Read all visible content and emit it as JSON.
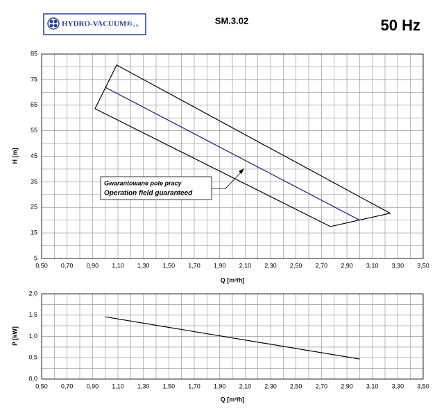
{
  "header": {
    "logo": "HYDRO-VACUUM®",
    "logo_suffix": "S.A.",
    "model": "SM.3.02",
    "frequency": "50 Hz"
  },
  "chart_data": [
    {
      "type": "line",
      "xlabel": "Q [m³/h]",
      "ylabel": "H [m]",
      "annotations": [
        "Gwarantowane pole pracy",
        "Operation field guaranteed"
      ],
      "xlim": [
        0.5,
        3.5
      ],
      "xticks": [
        {
          "value": 0.5,
          "label": "0,50"
        },
        {
          "value": 0.7,
          "label": "0,70"
        },
        {
          "value": 0.9,
          "label": "0,90"
        },
        {
          "value": 1.1,
          "label": "1,10"
        },
        {
          "value": 1.3,
          "label": "1,30"
        },
        {
          "value": 1.5,
          "label": "1,50"
        },
        {
          "value": 1.7,
          "label": "1,70"
        },
        {
          "value": 1.9,
          "label": "1,90"
        },
        {
          "value": 2.1,
          "label": "2,10"
        },
        {
          "value": 2.3,
          "label": "2,30"
        },
        {
          "value": 2.5,
          "label": "2,50"
        },
        {
          "value": 2.7,
          "label": "2,70"
        },
        {
          "value": 2.9,
          "label": "2,90"
        },
        {
          "value": 3.1,
          "label": "3,10"
        },
        {
          "value": 3.3,
          "label": "3,30"
        },
        {
          "value": 3.5,
          "label": "3,50"
        }
      ],
      "xgrid_minor": [
        0.6,
        0.8,
        1.0,
        1.2,
        1.4,
        1.6,
        1.8,
        2.0,
        2.2,
        2.4,
        2.6,
        2.8,
        3.0,
        3.2,
        3.4
      ],
      "ylim": [
        5,
        85
      ],
      "yticks": [
        5,
        15,
        25,
        35,
        45,
        55,
        65,
        75,
        85
      ],
      "ygrid_minor": [
        10,
        20,
        30,
        40,
        50,
        60,
        70,
        80
      ],
      "series": [
        {
          "color": "#1a1a7a",
          "x": [
            1.0,
            3.0
          ],
          "values": [
            72,
            20
          ]
        },
        {
          "color": "#000000",
          "closed": true,
          "x": [
            1.09,
            3.24,
            2.77,
            0.92
          ],
          "values": [
            80.7,
            22.7,
            17.5,
            63.6
          ]
        }
      ]
    },
    {
      "type": "line",
      "xlabel": "Q [m³/h]",
      "ylabel": "P [kW]",
      "xlim": [
        0.5,
        3.5
      ],
      "xticks": [
        {
          "value": 0.5,
          "label": "0,50"
        },
        {
          "value": 0.7,
          "label": "0,70"
        },
        {
          "value": 0.9,
          "label": "0,90"
        },
        {
          "value": 1.1,
          "label": "1,10"
        },
        {
          "value": 1.3,
          "label": "1,30"
        },
        {
          "value": 1.5,
          "label": "1,50"
        },
        {
          "value": 1.7,
          "label": "1,70"
        },
        {
          "value": 1.9,
          "label": "1,90"
        },
        {
          "value": 2.1,
          "label": "2,10"
        },
        {
          "value": 2.3,
          "label": "2,30"
        },
        {
          "value": 2.5,
          "label": "2,50"
        },
        {
          "value": 2.7,
          "label": "2,70"
        },
        {
          "value": 2.9,
          "label": "2,90"
        },
        {
          "value": 3.1,
          "label": "3,10"
        },
        {
          "value": 3.3,
          "label": "3,30"
        },
        {
          "value": 3.5,
          "label": "3,50"
        }
      ],
      "xgrid_minor": [
        0.6,
        0.8,
        1.0,
        1.2,
        1.4,
        1.6,
        1.8,
        2.0,
        2.2,
        2.4,
        2.6,
        2.8,
        3.0,
        3.2,
        3.4
      ],
      "ylim": [
        0,
        2
      ],
      "yticks": [
        {
          "value": 0,
          "label": "0,0"
        },
        {
          "value": 0.5,
          "label": "0,5"
        },
        {
          "value": 1,
          "label": "1,0"
        },
        {
          "value": 1.5,
          "label": "1,5"
        },
        {
          "value": 2,
          "label": "2,0"
        }
      ],
      "ygrid_minor": [
        0.25,
        0.75,
        1.25,
        1.75
      ],
      "series": [
        {
          "color": "#000000",
          "x": [
            1.0,
            3.0
          ],
          "values": [
            1.46,
            0.47
          ]
        }
      ]
    }
  ]
}
